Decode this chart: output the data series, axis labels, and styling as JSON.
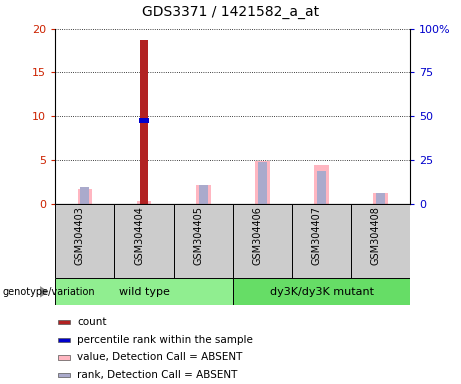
{
  "title": "GDS3371 / 1421582_a_at",
  "samples": [
    "GSM304403",
    "GSM304404",
    "GSM304405",
    "GSM304406",
    "GSM304407",
    "GSM304408"
  ],
  "count_values": [
    0,
    18.7,
    0,
    0,
    0,
    0
  ],
  "percentile_values": [
    0,
    9.5,
    0,
    0,
    0,
    0
  ],
  "absent_value_values": [
    1.7,
    0.25,
    2.1,
    4.9,
    4.4,
    1.2
  ],
  "absent_rank_values": [
    1.9,
    0,
    2.1,
    4.75,
    3.7,
    1.15
  ],
  "ylim": [
    0,
    20
  ],
  "yticks": [
    0,
    5,
    10,
    15,
    20
  ],
  "y2lim": [
    0,
    100
  ],
  "y2ticks": [
    0,
    25,
    50,
    75,
    100
  ],
  "y2ticklabels": [
    "0",
    "25",
    "50",
    "75",
    "100%"
  ],
  "color_count": "#B22222",
  "color_percentile": "#0000CC",
  "color_absent_value": "#FFB6C1",
  "color_absent_rank": "#AAAACC",
  "left_tick_color": "#CC2200",
  "right_tick_color": "#0000CC",
  "sample_box_color": "#CCCCCC",
  "wildtype_color": "#90EE90",
  "mutant_color": "#66DD66",
  "genotype_label": "genotype/variation",
  "legend_items": [
    {
      "color": "#B22222",
      "label": "count"
    },
    {
      "color": "#0000CC",
      "label": "percentile rank within the sample"
    },
    {
      "color": "#FFB6C1",
      "label": "value, Detection Call = ABSENT"
    },
    {
      "color": "#AAAACC",
      "label": "rank, Detection Call = ABSENT"
    }
  ],
  "absent_bar_width": 0.25,
  "count_bar_width": 0.15
}
